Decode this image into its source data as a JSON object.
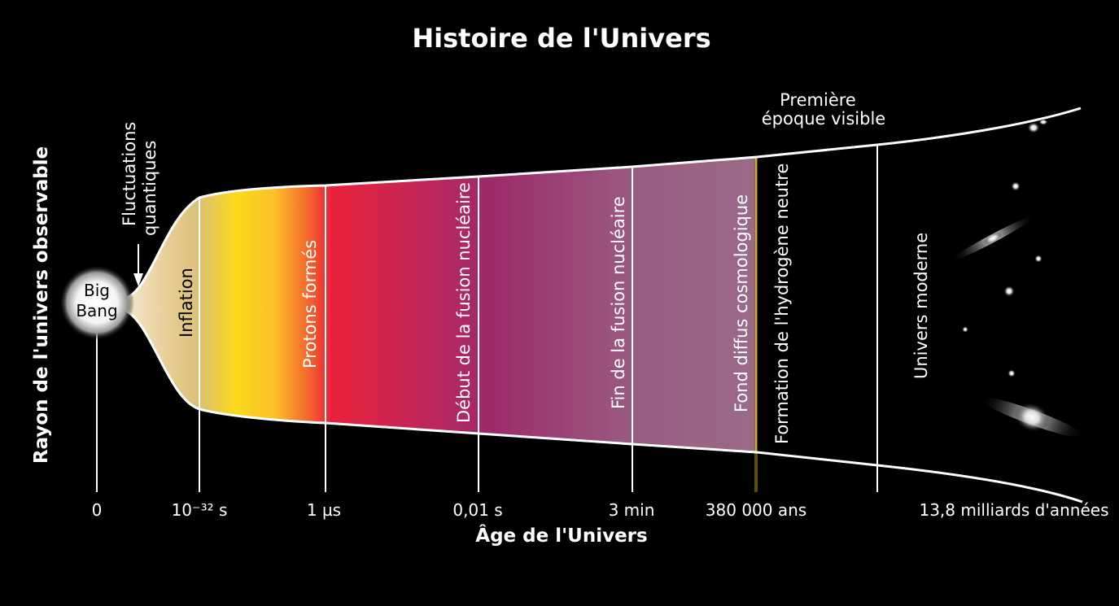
{
  "title": "Histoire de l'Univers",
  "xlabel": "Âge de l'Univers",
  "ylabel": "Rayon de l'univers observable",
  "big_bang": {
    "line1": "Big",
    "line2": "Bang"
  },
  "fluctuations": {
    "line1": "Fluctuations",
    "line2": "quantiques"
  },
  "first_epoch": {
    "line1": "Première",
    "line2": "époque visible"
  },
  "ticks": [
    "0",
    "10⁻³² s",
    "1 µs",
    "0,01 s",
    "3 min",
    "380 000 ans",
    "13,8 milliards d'années"
  ],
  "eras": {
    "inflation": "Inflation",
    "protons": "Protons formés",
    "fusion_start": "Début de la fusion nucléaire",
    "fusion_end": "Fin de la fusion nucléaire",
    "cmb": "Fond diffus cosmologique",
    "hydrogen": "Formation de l'hydrogène neutre",
    "modern": "Univers moderne"
  },
  "colors": {
    "background": "#000000",
    "inflation": "#e2c27a",
    "yellow": "#fcd91c",
    "red": "#e8213a",
    "purple": "#9c2a6a",
    "mauve": "#9a6b88"
  }
}
